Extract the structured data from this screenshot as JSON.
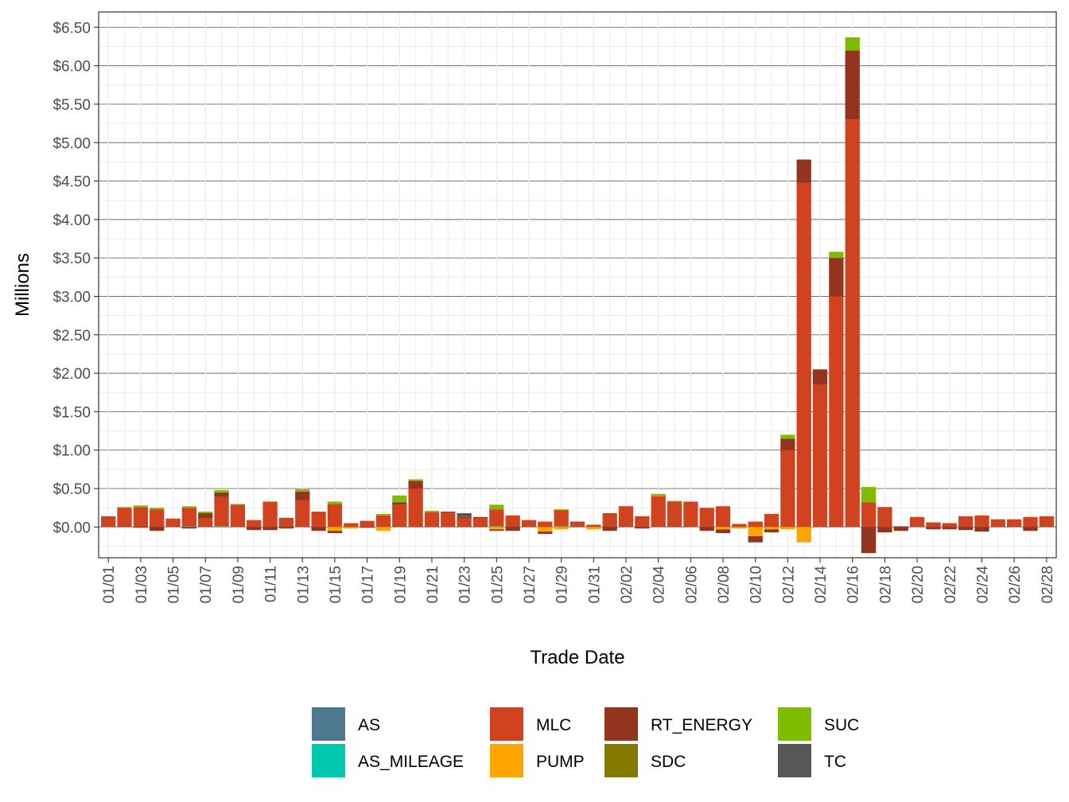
{
  "chart_data": {
    "type": "bar",
    "stacked": true,
    "xlabel": "Trade Date",
    "ylabel": "Millions",
    "ylim": [
      -0.4,
      6.7
    ],
    "y_ticks": [
      0,
      0.5,
      1,
      1.5,
      2,
      2.5,
      3,
      3.5,
      4,
      4.5,
      5,
      5.5,
      6,
      6.5
    ],
    "y_tick_labels": [
      "$0.00",
      "$0.50",
      "$1.00",
      "$1.50",
      "$2.00",
      "$2.50",
      "$3.00",
      "$3.50",
      "$4.00",
      "$4.50",
      "$5.00",
      "$5.50",
      "$6.00",
      "$6.50"
    ],
    "grid": true,
    "legend_position": "bottom",
    "categories": [
      "01/01",
      "01/02",
      "01/03",
      "01/04",
      "01/05",
      "01/06",
      "01/07",
      "01/08",
      "01/09",
      "01/10",
      "01/11",
      "01/12",
      "01/13",
      "01/14",
      "01/15",
      "01/16",
      "01/17",
      "01/18",
      "01/19",
      "01/20",
      "01/21",
      "01/22",
      "01/23",
      "01/24",
      "01/25",
      "01/26",
      "01/27",
      "01/28",
      "01/29",
      "01/30",
      "01/31",
      "02/01",
      "02/02",
      "02/03",
      "02/04",
      "02/05",
      "02/06",
      "02/07",
      "02/08",
      "02/09",
      "02/10",
      "02/11",
      "02/12",
      "02/13",
      "02/14",
      "02/15",
      "02/16",
      "02/17",
      "02/18",
      "02/19",
      "02/20",
      "02/21",
      "02/22",
      "02/23",
      "02/24",
      "02/25",
      "02/26",
      "02/27",
      "02/28"
    ],
    "x_tick_labels": [
      "01/01",
      "01/03",
      "01/05",
      "01/07",
      "01/09",
      "01/11",
      "01/13",
      "01/15",
      "01/17",
      "01/19",
      "01/21",
      "01/23",
      "01/25",
      "01/27",
      "01/29",
      "01/31",
      "02/02",
      "02/04",
      "02/06",
      "02/08",
      "02/10",
      "02/12",
      "02/14",
      "02/16",
      "02/18",
      "02/20",
      "02/22",
      "02/24",
      "02/26",
      "02/28"
    ],
    "series": [
      {
        "name": "AS",
        "color": "#4e7790",
        "values": [
          0,
          0,
          0,
          0,
          0,
          0,
          0,
          0,
          0,
          0,
          0,
          0,
          0,
          0,
          0,
          0,
          0,
          0,
          0,
          0,
          0,
          0,
          0,
          0,
          0,
          0,
          0,
          0,
          0,
          0,
          0,
          0,
          0,
          0,
          0,
          0,
          0,
          0,
          0,
          0,
          0,
          0,
          0,
          0,
          0,
          0,
          0,
          0,
          0,
          0,
          0,
          0,
          0,
          0,
          0,
          0,
          0,
          0,
          0
        ]
      },
      {
        "name": "AS_MILEAGE",
        "color": "#00c8b0",
        "values": [
          0,
          0,
          0,
          0,
          0,
          0.01,
          0,
          0.01,
          0,
          0,
          0,
          0,
          0,
          0,
          0,
          0,
          0,
          0,
          0,
          0,
          0,
          0,
          0,
          0,
          0.01,
          0,
          0,
          0,
          0.01,
          0,
          0,
          0,
          0,
          0,
          0,
          0,
          0,
          0,
          0,
          0,
          0,
          0,
          0,
          0,
          0,
          0,
          0,
          0,
          0,
          0,
          0,
          0,
          0,
          0,
          0,
          0,
          0,
          0,
          0
        ]
      },
      {
        "name": "MLC",
        "color": "#d1421f",
        "values": [
          0.13,
          0.25,
          0.26,
          0.23,
          0.11,
          0.24,
          0.11,
          0.38,
          0.29,
          0.09,
          0.33,
          0.12,
          0.35,
          0.2,
          0.3,
          0.05,
          0.08,
          0.15,
          0.29,
          0.5,
          0.19,
          0.19,
          0.11,
          0.11,
          0.22,
          0.15,
          0.09,
          0.07,
          0.21,
          0.06,
          0.03,
          0.18,
          0.27,
          0.14,
          0.4,
          0.33,
          0.33,
          0.25,
          0.27,
          0.04,
          0.07,
          0.17,
          1.0,
          4.48,
          1.85,
          3.0,
          5.3,
          0.32,
          0.26,
          0.01,
          0.13,
          0.06,
          0.05,
          0.14,
          0.15,
          0.1,
          0.1,
          0.13,
          0.14
        ]
      },
      {
        "name": "PUMP",
        "color": "#ffa500",
        "values": [
          0,
          0,
          0,
          0,
          0,
          0,
          0,
          0,
          0,
          0,
          0,
          0,
          0,
          0,
          -0.05,
          -0.02,
          0,
          -0.05,
          0,
          0,
          0,
          0,
          0,
          0,
          -0.03,
          0,
          0,
          -0.06,
          -0.03,
          0,
          -0.03,
          0,
          0,
          0,
          0,
          0,
          0,
          0,
          -0.03,
          -0.02,
          -0.12,
          -0.03,
          -0.03,
          -0.2,
          0,
          0,
          0,
          0,
          0,
          0,
          0,
          0,
          0,
          0,
          0,
          0,
          0,
          0,
          0
        ]
      },
      {
        "name": "RT_ENERGY",
        "color": "#94341f",
        "values": [
          0.01,
          0,
          -0.01,
          -0.05,
          0,
          -0.02,
          0.07,
          0.06,
          0,
          -0.04,
          -0.04,
          -0.02,
          0.11,
          -0.05,
          -0.03,
          0,
          -0.01,
          0,
          0.03,
          0.1,
          0,
          0.01,
          0.02,
          0.02,
          -0.02,
          -0.05,
          0,
          -0.03,
          0,
          0.01,
          0,
          -0.05,
          0,
          -0.02,
          0,
          0,
          0,
          -0.05,
          -0.05,
          0,
          -0.08,
          -0.04,
          0.15,
          0.3,
          0.2,
          0.5,
          0.9,
          -0.34,
          -0.07,
          -0.05,
          0,
          -0.03,
          -0.03,
          -0.04,
          -0.06,
          0,
          0,
          -0.05,
          0
        ]
      },
      {
        "name": "SDC",
        "color": "#857a00",
        "values": [
          0,
          0,
          0,
          0,
          0,
          0,
          0,
          0,
          0,
          0,
          0,
          0,
          0,
          0,
          0,
          0,
          0,
          0,
          0,
          0,
          0,
          0,
          0,
          0,
          0,
          0,
          0,
          0,
          0,
          0,
          0,
          0,
          0,
          0,
          0,
          0,
          0,
          0,
          0,
          0,
          0,
          0,
          0,
          0,
          0,
          0,
          0,
          0,
          0,
          0,
          0,
          0,
          0,
          0,
          0,
          0,
          0,
          0,
          0
        ]
      },
      {
        "name": "SUC",
        "color": "#7fbc00",
        "values": [
          0,
          0.01,
          0.02,
          0.02,
          0,
          0.02,
          0.02,
          0.03,
          0.01,
          0,
          0,
          0,
          0.03,
          0,
          0.03,
          0,
          0,
          0.02,
          0.09,
          0.02,
          0.02,
          0,
          0,
          0,
          0.06,
          0,
          0,
          0,
          0.01,
          0,
          0,
          0,
          0,
          0,
          0.03,
          0.01,
          0,
          0,
          0,
          0,
          0,
          0,
          0.05,
          0,
          0,
          0.08,
          0.17,
          0.2,
          0,
          0,
          0,
          0,
          0,
          0,
          0,
          0,
          0,
          0,
          0
        ]
      },
      {
        "name": "TC",
        "color": "#575757",
        "values": [
          0,
          0,
          0,
          0,
          0,
          0,
          0,
          0,
          0,
          0,
          0,
          0,
          0,
          0,
          0,
          0,
          0,
          0,
          0,
          0,
          0,
          0,
          0.05,
          0,
          0,
          0,
          0,
          0,
          0,
          0,
          0,
          0,
          0,
          0,
          0,
          0,
          0,
          0,
          0,
          0,
          0,
          0,
          0,
          0,
          0,
          0,
          0,
          0,
          0,
          0,
          0,
          0,
          0,
          0,
          0,
          0,
          0,
          0,
          0
        ]
      }
    ]
  }
}
